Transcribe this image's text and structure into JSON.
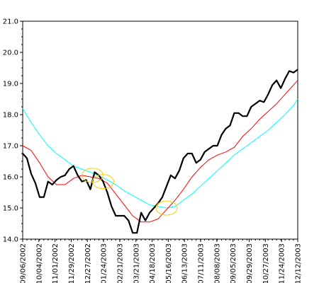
{
  "chart_data": {
    "type": "line",
    "title": "",
    "xlabel": "",
    "ylabel": "",
    "x_type": "category-dates",
    "x_range": [
      "09/06/2002",
      "12/12/2003"
    ],
    "x_tick_labels": [
      "09/06/2002",
      "10/04/2002",
      "11/01/2002",
      "11/29/2002",
      "12/27/2002",
      "01/24/2003",
      "02/21/2003",
      "03/21/2003",
      "04/18/2003",
      "05/16/2003",
      "06/13/2003",
      "07/11/2003",
      "08/08/2003",
      "09/05/2003",
      "09/29/2003",
      "10/27/2003",
      "11/24/2003",
      "12/12/2003"
    ],
    "ylim": [
      14.0,
      21.0
    ],
    "y_tick_labels": [
      "14.0",
      "15.0",
      "16.0",
      "17.0",
      "18.0",
      "19.0",
      "20.0",
      "21.0"
    ],
    "grid": false,
    "legend": "none",
    "series": [
      {
        "color": "#000000",
        "values": [
          [
            0,
            16.75
          ],
          [
            1,
            16.6
          ],
          [
            2,
            16.1
          ],
          [
            3,
            15.8
          ],
          [
            4,
            15.35
          ],
          [
            5,
            15.35
          ],
          [
            6,
            15.85
          ],
          [
            7,
            15.75
          ],
          [
            8,
            15.9
          ],
          [
            9,
            16.0
          ],
          [
            10,
            16.05
          ],
          [
            11,
            16.25
          ],
          [
            12,
            16.35
          ],
          [
            13,
            16.05
          ],
          [
            14,
            15.85
          ],
          [
            15,
            15.9
          ],
          [
            16,
            15.6
          ],
          [
            17,
            16.15
          ],
          [
            18,
            16.05
          ],
          [
            19,
            15.85
          ],
          [
            20,
            15.5
          ],
          [
            21,
            15.05
          ],
          [
            22,
            14.75
          ],
          [
            23,
            14.75
          ],
          [
            24,
            14.75
          ],
          [
            25,
            14.6
          ],
          [
            26,
            14.2
          ],
          [
            27,
            14.2
          ],
          [
            28,
            14.85
          ],
          [
            29,
            14.6
          ],
          [
            30,
            14.85
          ],
          [
            31,
            15.0
          ],
          [
            32,
            15.15
          ],
          [
            33,
            15.35
          ],
          [
            34,
            15.7
          ],
          [
            35,
            16.05
          ],
          [
            36,
            15.95
          ],
          [
            37,
            16.2
          ],
          [
            38,
            16.6
          ],
          [
            39,
            16.75
          ],
          [
            40,
            16.75
          ],
          [
            41,
            16.45
          ],
          [
            42,
            16.55
          ],
          [
            43,
            16.8
          ],
          [
            44,
            16.9
          ],
          [
            45,
            17.0
          ],
          [
            46,
            17.0
          ],
          [
            47,
            17.35
          ],
          [
            48,
            17.55
          ],
          [
            49,
            17.65
          ],
          [
            50,
            18.05
          ],
          [
            51,
            18.05
          ],
          [
            52,
            17.95
          ],
          [
            53,
            17.95
          ],
          [
            54,
            18.25
          ],
          [
            55,
            18.35
          ],
          [
            56,
            18.45
          ],
          [
            57,
            18.4
          ],
          [
            58,
            18.65
          ],
          [
            59,
            18.95
          ],
          [
            60,
            19.1
          ],
          [
            61,
            18.85
          ],
          [
            62,
            19.15
          ],
          [
            63,
            19.4
          ],
          [
            64,
            19.35
          ],
          [
            65,
            19.45
          ]
        ]
      },
      {
        "color": "#ff0000",
        "values": [
          [
            0,
            17.0
          ],
          [
            2,
            16.85
          ],
          [
            4,
            16.45
          ],
          [
            6,
            16.0
          ],
          [
            8,
            15.75
          ],
          [
            10,
            15.75
          ],
          [
            12,
            15.95
          ],
          [
            14,
            16.05
          ],
          [
            16,
            16.0
          ],
          [
            18,
            15.95
          ],
          [
            20,
            15.8
          ],
          [
            22,
            15.45
          ],
          [
            24,
            15.1
          ],
          [
            26,
            14.75
          ],
          [
            28,
            14.55
          ],
          [
            30,
            14.55
          ],
          [
            32,
            14.65
          ],
          [
            34,
            14.95
          ],
          [
            36,
            15.25
          ],
          [
            38,
            15.6
          ],
          [
            40,
            16.0
          ],
          [
            42,
            16.3
          ],
          [
            44,
            16.55
          ],
          [
            46,
            16.7
          ],
          [
            48,
            16.8
          ],
          [
            50,
            16.95
          ],
          [
            52,
            17.3
          ],
          [
            54,
            17.55
          ],
          [
            56,
            17.85
          ],
          [
            58,
            18.1
          ],
          [
            60,
            18.35
          ],
          [
            62,
            18.65
          ],
          [
            64,
            18.95
          ],
          [
            65,
            19.1
          ]
        ]
      },
      {
        "color": "#00ffff",
        "values": [
          [
            0,
            18.2
          ],
          [
            2,
            17.75
          ],
          [
            4,
            17.35
          ],
          [
            6,
            17.0
          ],
          [
            8,
            16.75
          ],
          [
            10,
            16.55
          ],
          [
            12,
            16.35
          ],
          [
            14,
            16.25
          ],
          [
            16,
            16.15
          ],
          [
            18,
            16.05
          ],
          [
            20,
            15.9
          ],
          [
            22,
            15.75
          ],
          [
            24,
            15.55
          ],
          [
            26,
            15.4
          ],
          [
            28,
            15.25
          ],
          [
            30,
            15.1
          ],
          [
            32,
            15.05
          ],
          [
            34,
            15.0
          ],
          [
            36,
            15.05
          ],
          [
            38,
            15.25
          ],
          [
            40,
            15.45
          ],
          [
            42,
            15.7
          ],
          [
            44,
            15.95
          ],
          [
            46,
            16.2
          ],
          [
            48,
            16.45
          ],
          [
            50,
            16.7
          ],
          [
            52,
            16.9
          ],
          [
            54,
            17.1
          ],
          [
            56,
            17.3
          ],
          [
            58,
            17.5
          ],
          [
            60,
            17.75
          ],
          [
            62,
            18.0
          ],
          [
            64,
            18.3
          ],
          [
            65,
            18.5
          ]
        ]
      }
    ],
    "annotations": [
      {
        "shape": "ellipse",
        "color": "#ffcc00",
        "at": [
          16.5,
          16.05
        ]
      },
      {
        "shape": "ellipse",
        "color": "#ffcc00",
        "at": [
          19.0,
          15.85
        ]
      },
      {
        "shape": "ellipse",
        "color": "#ffcc00",
        "at": [
          34.0,
          15.0
        ]
      }
    ]
  }
}
